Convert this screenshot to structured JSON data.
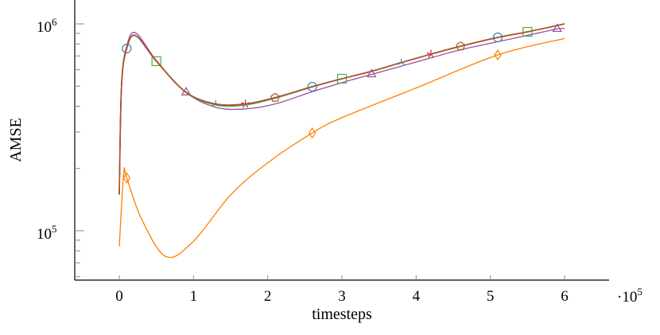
{
  "chart_data": {
    "type": "line",
    "title": "",
    "xlabel": "timesteps",
    "ylabel": "AMSE",
    "x_multiplier_label": "·10^5",
    "xlim": [
      -0.59,
      6.59
    ],
    "ylim": [
      58000,
      1300000
    ],
    "yscale": "log",
    "grid": false,
    "legend": "none",
    "x_ticks": [
      0,
      1,
      2,
      3,
      4,
      5,
      6
    ],
    "y_tick_labels": [
      {
        "value": 100000,
        "base": "10",
        "exp": "5"
      },
      {
        "value": 1000000,
        "base": "10",
        "exp": "6"
      }
    ],
    "series": [
      {
        "color": "#377eb8",
        "marker": "circle",
        "mark_x": [
          0.1,
          2.6,
          5.1
        ],
        "x": [
          0,
          0.03,
          0.1,
          0.22,
          0.5,
          0.9,
          1.3,
          1.7,
          2.1,
          2.6,
          3.0,
          3.4,
          3.8,
          4.2,
          4.6,
          5.1,
          5.5,
          6.0
        ],
        "y": [
          150000,
          500000,
          760000,
          880000,
          660000,
          467000,
          410000,
          410000,
          440000,
          497000,
          543000,
          590000,
          650000,
          714000,
          780000,
          860000,
          915000,
          1000000
        ]
      },
      {
        "color": "#4daf4a",
        "marker": "square",
        "mark_x": [
          0.5,
          3.0,
          5.5
        ],
        "x": [
          0,
          0.03,
          0.1,
          0.22,
          0.5,
          0.9,
          1.3,
          1.7,
          2.1,
          2.6,
          3.0,
          3.4,
          3.8,
          4.2,
          4.6,
          5.1,
          5.5,
          6.0
        ],
        "y": [
          150000,
          500000,
          760000,
          875000,
          660000,
          465000,
          405000,
          405000,
          437000,
          495000,
          543000,
          590000,
          650000,
          714000,
          780000,
          860000,
          915000,
          1000000
        ]
      },
      {
        "color": "#984ea3",
        "marker": "triangle",
        "mark_x": [
          0.9,
          3.4,
          5.9
        ],
        "x": [
          0,
          0.03,
          0.1,
          0.22,
          0.5,
          0.9,
          1.3,
          1.7,
          2.1,
          2.6,
          3.0,
          3.4,
          3.8,
          4.2,
          4.6,
          5.1,
          5.5,
          5.9,
          6.0
        ],
        "y": [
          150000,
          510000,
          780000,
          905000,
          665000,
          466000,
          395000,
          388000,
          410000,
          470000,
          520000,
          570000,
          625000,
          685000,
          750000,
          820000,
          880000,
          945000,
          950000
        ]
      },
      {
        "color": "#1f9ede",
        "marker": "tri-down",
        "mark_x": [
          1.3,
          3.8
        ],
        "x": [
          0,
          0.03,
          0.1,
          0.22,
          0.5,
          0.9,
          1.3,
          1.7,
          2.1,
          2.6,
          3.0,
          3.4,
          3.8,
          4.2,
          4.6,
          5.1,
          5.5,
          6.0
        ],
        "y": [
          150000,
          500000,
          760000,
          875000,
          660000,
          467000,
          410000,
          410000,
          440000,
          497000,
          543000,
          590000,
          650000,
          714000,
          780000,
          860000,
          915000,
          1000000
        ]
      },
      {
        "color": "#e41a4b",
        "marker": "star",
        "mark_x": [
          1.7,
          4.2
        ],
        "x": [
          0,
          0.03,
          0.1,
          0.22,
          0.5,
          0.9,
          1.3,
          1.7,
          2.1,
          2.6,
          3.0,
          3.4,
          3.8,
          4.2,
          4.6,
          5.1,
          5.5,
          6.0
        ],
        "y": [
          150000,
          500000,
          760000,
          878000,
          660000,
          467000,
          410000,
          410000,
          440000,
          497000,
          543000,
          590000,
          650000,
          714000,
          780000,
          860000,
          915000,
          1000000
        ]
      },
      {
        "color": "#a65628",
        "marker": "pentagon",
        "mark_x": [
          2.1,
          4.6
        ],
        "x": [
          0,
          0.03,
          0.1,
          0.22,
          0.5,
          0.9,
          1.3,
          1.7,
          2.1,
          2.6,
          3.0,
          3.4,
          3.8,
          4.2,
          4.6,
          5.1,
          5.5,
          6.0
        ],
        "y": [
          150000,
          500000,
          760000,
          878000,
          660000,
          467000,
          410000,
          410000,
          440000,
          497000,
          543000,
          590000,
          650000,
          714000,
          780000,
          860000,
          915000,
          1000000
        ]
      },
      {
        "color": "#ff7f00",
        "marker": "diamond",
        "mark_x": [
          0.1,
          2.6,
          5.1
        ],
        "x": [
          0,
          0.06,
          0.1,
          0.3,
          0.63,
          1.0,
          1.5,
          2.0,
          2.6,
          3.0,
          4.0,
          5.1,
          6.0
        ],
        "y": [
          84000,
          190000,
          180000,
          114000,
          75000,
          89000,
          149000,
          213000,
          297000,
          352000,
          490000,
          708000,
          850000
        ]
      }
    ]
  }
}
